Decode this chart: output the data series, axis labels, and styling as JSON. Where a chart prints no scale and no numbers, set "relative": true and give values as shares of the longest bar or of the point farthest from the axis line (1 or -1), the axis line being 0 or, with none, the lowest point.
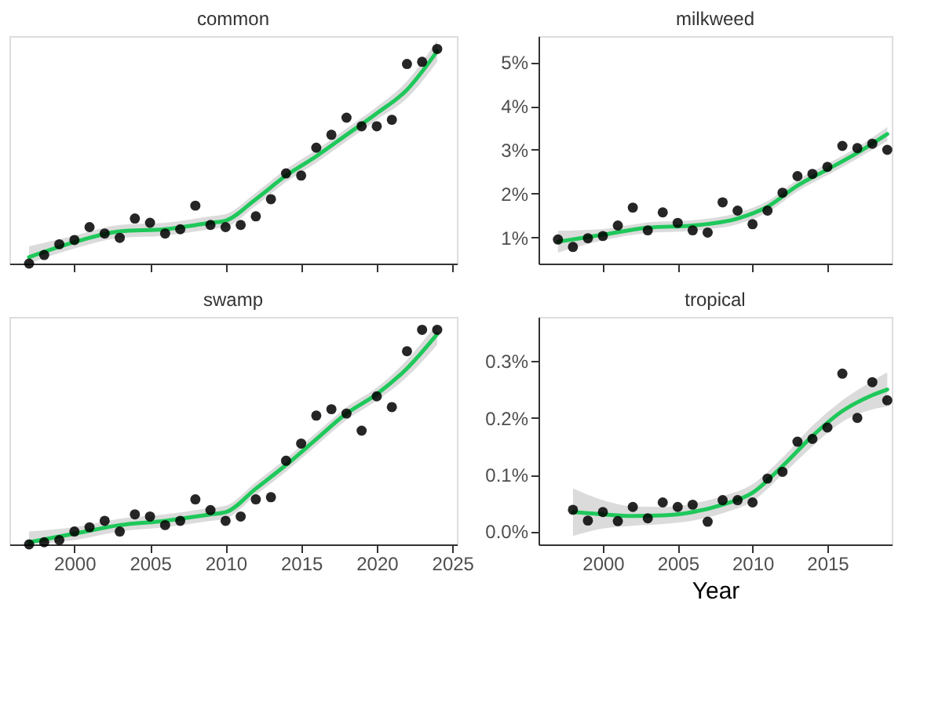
{
  "chart_data": [
    {
      "type": "scatter",
      "title": "common",
      "relative": true,
      "tick_labels": false,
      "grid": false,
      "x": [
        1997,
        1998,
        1999,
        2000,
        2001,
        2002,
        2003,
        2004,
        2005,
        2006,
        2007,
        2008,
        2009,
        2010,
        2011,
        2012,
        2013,
        2014,
        2015,
        2016,
        2017,
        2018,
        2019,
        2020,
        2021,
        2022,
        2023,
        2024
      ],
      "xlim": [
        1995.7,
        2025.3
      ],
      "xticks": [
        2000,
        2005,
        2010,
        2015,
        2020,
        2025
      ],
      "series": [
        {
          "marker": "circle",
          "color": "#000000",
          "values": [
            0,
            0.04,
            0.09,
            0.11,
            0.17,
            0.14,
            0.12,
            0.21,
            0.19,
            0.14,
            0.16,
            0.27,
            0.18,
            0.17,
            0.18,
            0.22,
            0.3,
            0.42,
            0.41,
            0.54,
            0.6,
            0.68,
            0.64,
            0.64,
            0.67,
            0.93,
            0.94,
            1
          ]
        },
        {
          "type": "line",
          "color": "#1ec85a",
          "x": [
            1997,
            2000,
            2003,
            2006,
            2009,
            2010,
            2012,
            2014,
            2016,
            2018,
            2020,
            2022,
            2024
          ],
          "values": [
            0.03,
            0.1,
            0.15,
            0.16,
            0.19,
            0.2,
            0.3,
            0.41,
            0.5,
            0.6,
            0.7,
            0.81,
            0.99
          ],
          "lower": [
            0.0,
            0.07,
            0.12,
            0.13,
            0.16,
            0.17,
            0.27,
            0.38,
            0.47,
            0.57,
            0.67,
            0.77,
            0.94
          ],
          "upper": [
            0.08,
            0.13,
            0.18,
            0.19,
            0.22,
            0.23,
            0.33,
            0.44,
            0.53,
            0.63,
            0.73,
            0.85,
            1.04
          ]
        }
      ]
    },
    {
      "type": "scatter",
      "title": "milkweed",
      "tick_labels": "y",
      "grid": false,
      "x": [
        1997,
        1998,
        1999,
        2000,
        2001,
        2002,
        2003,
        2004,
        2005,
        2006,
        2007,
        2008,
        2009,
        2010,
        2011,
        2012,
        2013,
        2014,
        2015,
        2016,
        2017,
        2018,
        2019
      ],
      "xlim": [
        1995.7,
        2019.3
      ],
      "xticks": [
        2000,
        2005,
        2010,
        2015
      ],
      "ylim": [
        0.4,
        5.6
      ],
      "yticks": [
        {
          "value": 1,
          "label": "1%"
        },
        {
          "value": 2,
          "label": "2%"
        },
        {
          "value": 3,
          "label": "3%"
        },
        {
          "value": 4,
          "label": "4%"
        },
        {
          "value": 5,
          "label": "5%"
        }
      ],
      "series": [
        {
          "marker": "circle",
          "color": "#000000",
          "values": [
            0.95,
            0.78,
            0.98,
            1.03,
            1.27,
            1.68,
            1.16,
            1.57,
            1.33,
            1.16,
            1.11,
            1.8,
            1.61,
            1.3,
            1.61,
            2.02,
            2.4,
            2.45,
            2.61,
            3.09,
            3.04,
            3.14,
            3.0
          ]
        },
        {
          "type": "line",
          "color": "#1ec85a",
          "x": [
            1997,
            2000,
            2003,
            2006,
            2009,
            2011,
            2013,
            2015,
            2017,
            2019
          ],
          "values": [
            0.9,
            1.06,
            1.22,
            1.27,
            1.43,
            1.7,
            2.18,
            2.55,
            2.93,
            3.36
          ],
          "lower": [
            0.65,
            0.93,
            1.1,
            1.15,
            1.3,
            1.57,
            2.05,
            2.42,
            2.8,
            3.2
          ],
          "upper": [
            1.15,
            1.19,
            1.34,
            1.39,
            1.56,
            1.83,
            2.31,
            2.68,
            3.06,
            3.52
          ]
        }
      ]
    },
    {
      "type": "scatter",
      "title": "swamp",
      "relative": true,
      "tick_labels": "x",
      "grid": false,
      "x": [
        1997,
        1998,
        1999,
        2000,
        2001,
        2002,
        2003,
        2004,
        2005,
        2006,
        2007,
        2008,
        2009,
        2010,
        2011,
        2012,
        2013,
        2014,
        2015,
        2016,
        2017,
        2018,
        2019,
        2020,
        2021,
        2022,
        2023,
        2024
      ],
      "xlim": [
        1995.7,
        2025.3
      ],
      "xticks": [
        2000,
        2005,
        2010,
        2015,
        2020,
        2025
      ],
      "series": [
        {
          "marker": "circle",
          "color": "#000000",
          "values": [
            0,
            0.01,
            0.02,
            0.06,
            0.08,
            0.11,
            0.06,
            0.14,
            0.13,
            0.09,
            0.11,
            0.21,
            0.16,
            0.11,
            0.13,
            0.21,
            0.22,
            0.39,
            0.47,
            0.6,
            0.63,
            0.61,
            0.53,
            0.69,
            0.64,
            0.9,
            1.0,
            1.0
          ]
        },
        {
          "type": "line",
          "color": "#1ec85a",
          "x": [
            1997,
            2000,
            2003,
            2006,
            2009,
            2010,
            2012,
            2014,
            2016,
            2018,
            2020,
            2022,
            2024
          ],
          "values": [
            0.01,
            0.05,
            0.09,
            0.11,
            0.14,
            0.15,
            0.26,
            0.37,
            0.49,
            0.61,
            0.7,
            0.82,
            0.98
          ],
          "lower": [
            0.0,
            0.02,
            0.06,
            0.08,
            0.11,
            0.12,
            0.23,
            0.34,
            0.46,
            0.58,
            0.67,
            0.78,
            0.93
          ],
          "upper": [
            0.06,
            0.08,
            0.12,
            0.14,
            0.17,
            0.18,
            0.29,
            0.4,
            0.52,
            0.64,
            0.73,
            0.86,
            1.03
          ]
        }
      ]
    },
    {
      "type": "scatter",
      "title": "tropical",
      "xlabel": "Year",
      "grid": false,
      "x": [
        1998,
        1999,
        2000,
        2001,
        2002,
        2003,
        2004,
        2005,
        2006,
        2007,
        2008,
        2009,
        2010,
        2011,
        2012,
        2013,
        2014,
        2015,
        2016,
        2017,
        2018,
        2019
      ],
      "xlim": [
        1995.7,
        2019.3
      ],
      "xticks": [
        2000,
        2005,
        2010,
        2015
      ],
      "ylim": [
        -0.023,
        0.378
      ],
      "yticks": [
        {
          "value": 0,
          "label": "0.0%"
        },
        {
          "value": 0.1,
          "label": "0.1%"
        },
        {
          "value": 0.2,
          "label": "0.2%"
        },
        {
          "value": 0.3,
          "label": "0.3%"
        }
      ],
      "series": [
        {
          "marker": "circle",
          "color": "#000000",
          "values": [
            0.038,
            0.019,
            0.034,
            0.018,
            0.043,
            0.023,
            0.051,
            0.043,
            0.047,
            0.017,
            0.055,
            0.055,
            0.051,
            0.093,
            0.105,
            0.158,
            0.163,
            0.183,
            0.278,
            0.2,
            0.263,
            0.231
          ]
        },
        {
          "type": "line",
          "color": "#1ec85a",
          "x": [
            1998,
            2000,
            2002,
            2004,
            2006,
            2008,
            2010,
            2012,
            2014,
            2016,
            2018,
            2019
          ],
          "values": [
            0.034,
            0.03,
            0.027,
            0.028,
            0.034,
            0.047,
            0.068,
            0.115,
            0.168,
            0.212,
            0.24,
            0.25
          ],
          "lower": [
            -0.008,
            0.005,
            0.01,
            0.013,
            0.019,
            0.032,
            0.053,
            0.1,
            0.15,
            0.193,
            0.215,
            0.22
          ],
          "upper": [
            0.076,
            0.055,
            0.044,
            0.043,
            0.049,
            0.062,
            0.083,
            0.13,
            0.186,
            0.231,
            0.265,
            0.28
          ]
        }
      ]
    }
  ]
}
